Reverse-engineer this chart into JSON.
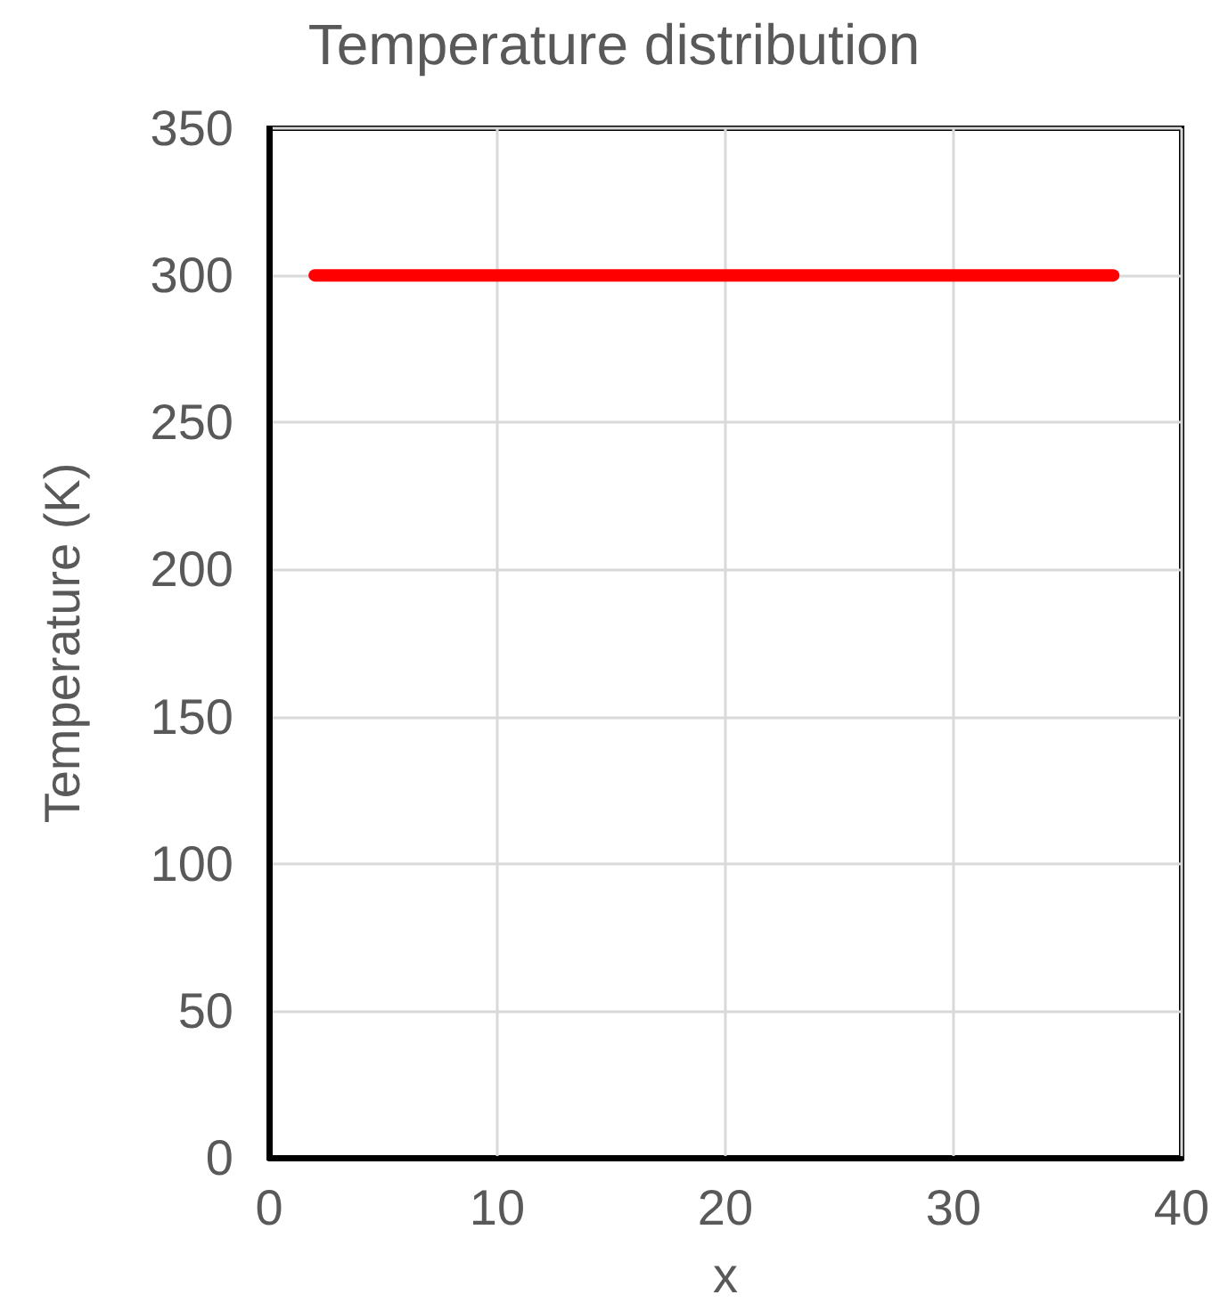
{
  "chart_data": {
    "type": "line",
    "title": "Temperature distribution",
    "xlabel": "x",
    "ylabel": "Temperature (K)",
    "x": [
      2,
      37
    ],
    "series": [
      {
        "color": "#ff0000",
        "values": [
          300,
          300
        ]
      }
    ],
    "xlim": [
      0,
      40
    ],
    "xticks": [
      0,
      10,
      20,
      30,
      40
    ],
    "ylim": [
      0,
      350
    ],
    "yticks": [
      0,
      50,
      100,
      150,
      200,
      250,
      300,
      350
    ],
    "grid": true,
    "marker": "none",
    "line_style": "solid"
  }
}
